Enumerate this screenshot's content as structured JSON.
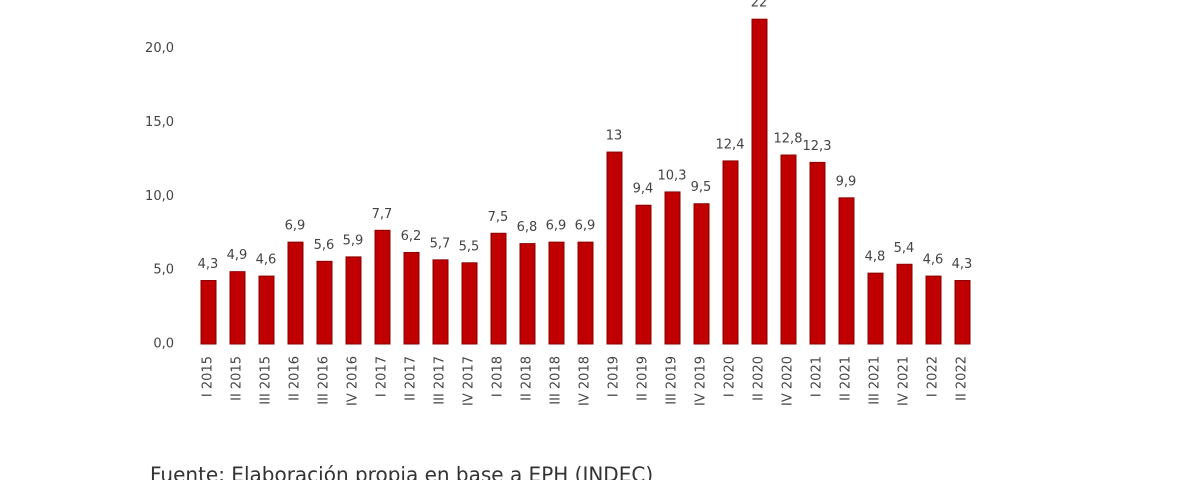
{
  "chart_data": {
    "type": "bar",
    "categories": [
      "I 2015",
      "II 2015",
      "III 2015",
      "II 2016",
      "III 2016",
      "IV 2016",
      "I 2017",
      "II 2017",
      "III 2017",
      "IV 2017",
      "I 2018",
      "II 2018",
      "III 2018",
      "IV 2018",
      "I 2019",
      "II 2019",
      "III 2019",
      "IV 2019",
      "I 2020",
      "II 2020",
      "IV 2020",
      "I 2021",
      "II 2021",
      "III 2021",
      "IV 2021",
      "I 2022",
      "II 2022"
    ],
    "values": [
      4.3,
      4.9,
      4.6,
      6.9,
      5.6,
      5.9,
      7.7,
      6.2,
      5.7,
      5.5,
      7.5,
      6.8,
      6.9,
      6.9,
      13,
      9.4,
      10.3,
      9.5,
      12.4,
      22,
      12.8,
      12.3,
      9.9,
      4.8,
      5.4,
      4.6,
      4.3
    ],
    "value_labels": [
      "4,3",
      "4,9",
      "4,6",
      "6,9",
      "5,6",
      "5,9",
      "7,7",
      "6,2",
      "5,7",
      "5,5",
      "7,5",
      "6,8",
      "6,9",
      "6,9",
      "13",
      "9,4",
      "10,3",
      "9,5",
      "12,4",
      "22",
      "12,8",
      "12,3",
      "9,9",
      "4,8",
      "5,4",
      "4,6",
      "4,3"
    ],
    "color": "#c00000",
    "ylim": [
      0,
      23.3
    ],
    "yticks": [
      {
        "value": 0,
        "label": "0,0"
      },
      {
        "value": 5,
        "label": "5,0"
      },
      {
        "value": 10,
        "label": "10,0"
      },
      {
        "value": 15,
        "label": "15,0"
      },
      {
        "value": 20,
        "label": "20,0"
      }
    ],
    "grid": false,
    "source": "Fuente: Elaboración propia en base a EPH (INDEC)"
  }
}
